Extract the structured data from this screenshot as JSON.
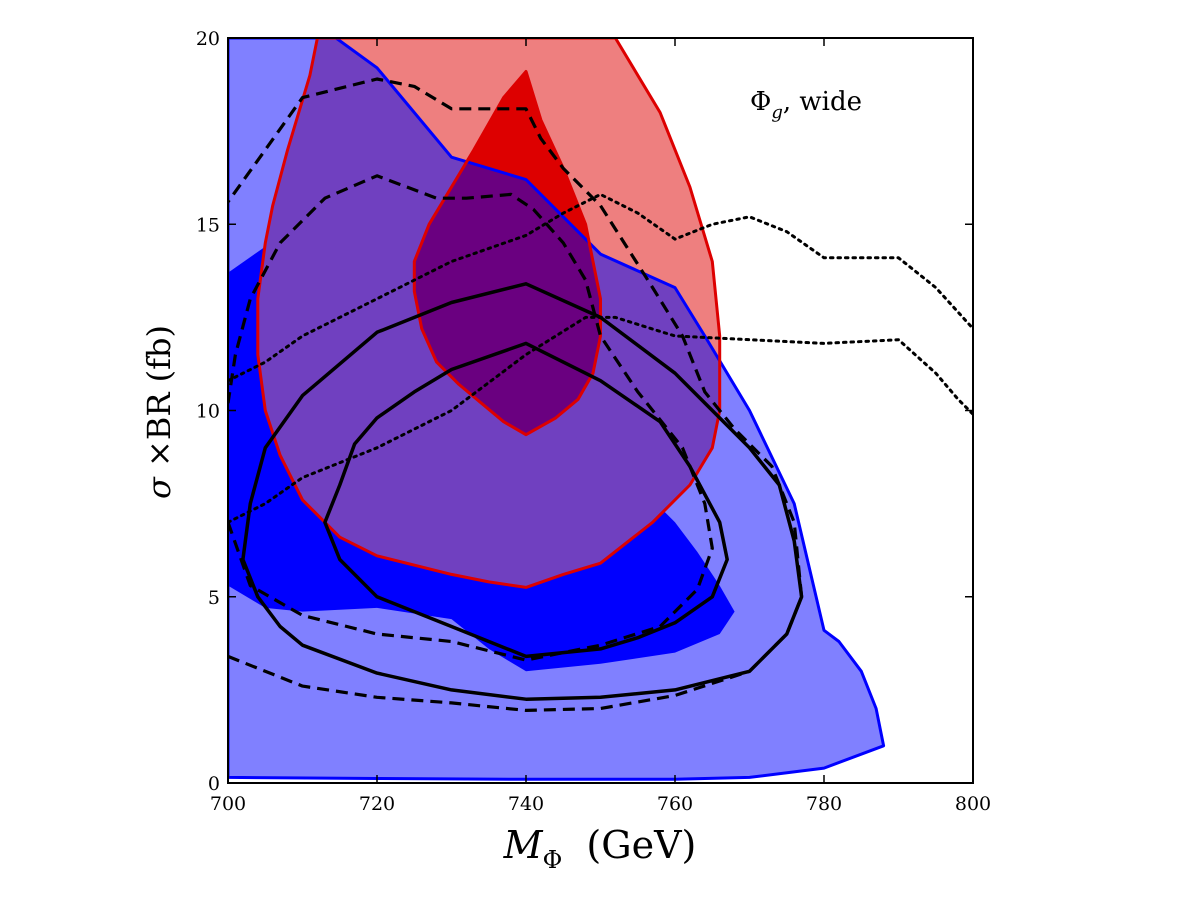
{
  "chart_data": {
    "type": "area",
    "annotation": {
      "symbol": "Φ",
      "subscript": "g",
      "suffix": ", wide"
    },
    "xlabel": {
      "base": "M",
      "subscript": "Φ",
      "suffix": "  (GeV)"
    },
    "ylabel": {
      "sigma": "σ",
      "rest": " ×BR (fb)"
    },
    "xlim": [
      700,
      800
    ],
    "ylim": [
      0,
      20
    ],
    "xticks": [
      700,
      720,
      740,
      760,
      780,
      800
    ],
    "yticks": [
      0,
      5,
      10,
      15,
      20
    ],
    "grid": false,
    "colors": {
      "blue_outer": "#8080ff",
      "blue_edge": "#0000ff",
      "blue_inner": "#0000ff",
      "red_outer": "#ee7f7f",
      "red_edge": "#dd0000",
      "red_inner": "#dd0000",
      "overlap_outer": "#7040c0",
      "overlap_inner": "#6a0080",
      "black": "#000000"
    },
    "regions": [
      {
        "id": "blue-outer",
        "fill": "blue_outer",
        "stroke": "blue_edge",
        "stroke_width": 3,
        "points": [
          [
            700,
            20
          ],
          [
            714.5,
            20
          ],
          [
            720,
            19.2
          ],
          [
            730,
            16.8
          ],
          [
            740,
            16.2
          ],
          [
            750,
            14.2
          ],
          [
            760,
            13.3
          ],
          [
            764,
            12.0
          ],
          [
            770,
            10.0
          ],
          [
            776,
            7.5
          ],
          [
            780,
            4.1
          ],
          [
            782,
            3.8
          ],
          [
            785,
            3.0
          ],
          [
            787,
            2.0
          ],
          [
            788,
            1.0
          ],
          [
            780,
            0.4
          ],
          [
            770,
            0.15
          ],
          [
            760,
            0.1
          ],
          [
            740,
            0.1
          ],
          [
            720,
            0.12
          ],
          [
            700,
            0.15
          ]
        ]
      },
      {
        "id": "blue-inner",
        "fill": "blue_inner",
        "stroke": "none",
        "stroke_width": 0,
        "points": [
          [
            700,
            13.7
          ],
          [
            705,
            14.4
          ],
          [
            710,
            14.9
          ],
          [
            715,
            14.3
          ],
          [
            720,
            13.5
          ],
          [
            725,
            12.7
          ],
          [
            730,
            11.9
          ],
          [
            735,
            11.1
          ],
          [
            740,
            10.3
          ],
          [
            745,
            9.6
          ],
          [
            750,
            8.7
          ],
          [
            755,
            8.0
          ],
          [
            760,
            7.0
          ],
          [
            763,
            6.2
          ],
          [
            766,
            5.3
          ],
          [
            768,
            4.6
          ],
          [
            766,
            4.0
          ],
          [
            760,
            3.5
          ],
          [
            750,
            3.2
          ],
          [
            740,
            3.0
          ],
          [
            735,
            3.6
          ],
          [
            730,
            4.4
          ],
          [
            720,
            4.7
          ],
          [
            710,
            4.6
          ],
          [
            705,
            4.7
          ],
          [
            700,
            5.3
          ]
        ]
      },
      {
        "id": "red-outer",
        "fill": "red_outer",
        "stroke": "red_edge",
        "stroke_width": 3,
        "points": [
          [
            712,
            20
          ],
          [
            726,
            20
          ],
          [
            729,
            20
          ],
          [
            736,
            20
          ],
          [
            745,
            20
          ],
          [
            752,
            20
          ],
          [
            758,
            18.0
          ],
          [
            762,
            16.0
          ],
          [
            765,
            14.0
          ],
          [
            766,
            12.0
          ],
          [
            766,
            10.0
          ],
          [
            765,
            9.0
          ],
          [
            762,
            8.0
          ],
          [
            757,
            7.0
          ],
          [
            750,
            5.9
          ],
          [
            745,
            5.6
          ],
          [
            740,
            5.25
          ],
          [
            735,
            5.4
          ],
          [
            730,
            5.6
          ],
          [
            720,
            6.1
          ],
          [
            715,
            6.6
          ],
          [
            710,
            7.6
          ],
          [
            707,
            8.8
          ],
          [
            705,
            10.0
          ],
          [
            704,
            11.5
          ],
          [
            704,
            13.0
          ],
          [
            705,
            14.5
          ],
          [
            706,
            15.5
          ],
          [
            708,
            17.0
          ],
          [
            711,
            19.0
          ]
        ]
      },
      {
        "id": "red-inner",
        "fill": "red_inner",
        "stroke": "red_edge",
        "stroke_width": 3,
        "points": [
          [
            725,
            14.0
          ],
          [
            727,
            15.0
          ],
          [
            730,
            16.0
          ],
          [
            733,
            17.0
          ],
          [
            737,
            18.4
          ],
          [
            740,
            19.1
          ],
          [
            742,
            17.8
          ],
          [
            745,
            16.5
          ],
          [
            748,
            15.0
          ],
          [
            749,
            14.0
          ],
          [
            750,
            13.0
          ],
          [
            750,
            12.0
          ],
          [
            749,
            11.0
          ],
          [
            747,
            10.3
          ],
          [
            744,
            9.8
          ],
          [
            740,
            9.35
          ],
          [
            737,
            9.7
          ],
          [
            734,
            10.2
          ],
          [
            731,
            10.7
          ],
          [
            728,
            11.3
          ],
          [
            726,
            12.2
          ],
          [
            725,
            13.2
          ]
        ]
      }
    ],
    "series": [
      {
        "id": "black-solid-outer",
        "style": "solid",
        "closed": true,
        "points": [
          [
            710,
            3.7
          ],
          [
            720,
            2.95
          ],
          [
            730,
            2.5
          ],
          [
            740,
            2.25
          ],
          [
            750,
            2.3
          ],
          [
            760,
            2.5
          ],
          [
            770,
            3.0
          ],
          [
            775,
            4.0
          ],
          [
            777,
            5.0
          ],
          [
            776,
            6.5
          ],
          [
            774,
            8.0
          ],
          [
            770,
            9.0
          ],
          [
            765,
            10.0
          ],
          [
            760,
            11.0
          ],
          [
            750,
            12.5
          ],
          [
            740,
            13.4
          ],
          [
            730,
            12.9
          ],
          [
            720,
            12.1
          ],
          [
            710,
            10.4
          ],
          [
            705,
            9.0
          ],
          [
            703,
            7.5
          ],
          [
            702,
            6.0
          ],
          [
            704,
            5.0
          ],
          [
            707,
            4.2
          ]
        ]
      },
      {
        "id": "black-solid-inner",
        "style": "solid",
        "closed": true,
        "points": [
          [
            740,
            3.4
          ],
          [
            750,
            3.6
          ],
          [
            755,
            3.9
          ],
          [
            760,
            4.3
          ],
          [
            765,
            5.0
          ],
          [
            767,
            6.0
          ],
          [
            766,
            7.0
          ],
          [
            762,
            8.5
          ],
          [
            758,
            9.7
          ],
          [
            750,
            10.8
          ],
          [
            740,
            11.8
          ],
          [
            730,
            11.1
          ],
          [
            725,
            10.5
          ],
          [
            720,
            9.8
          ],
          [
            717,
            9.1
          ],
          [
            715,
            8.0
          ],
          [
            713,
            7.0
          ],
          [
            715,
            6.0
          ],
          [
            720,
            5.0
          ],
          [
            730,
            4.2
          ]
        ]
      },
      {
        "id": "black-dashed-outer",
        "style": "dashed",
        "closed": false,
        "points": [
          [
            700,
            3.4
          ],
          [
            710,
            2.6
          ],
          [
            720,
            2.3
          ],
          [
            730,
            2.15
          ],
          [
            740,
            1.95
          ],
          [
            750,
            2.0
          ],
          [
            760,
            2.35
          ],
          [
            770,
            3.0
          ],
          [
            775,
            4.0
          ],
          [
            777,
            5.0
          ],
          [
            776,
            7.0
          ],
          [
            773,
            8.5
          ],
          [
            768,
            9.5
          ],
          [
            764,
            10.5
          ],
          [
            761,
            12.0
          ],
          [
            757,
            13.3
          ],
          [
            750,
            15.5
          ],
          [
            745,
            16.5
          ],
          [
            742,
            17.3
          ],
          [
            740,
            18.1
          ],
          [
            735,
            18.1
          ],
          [
            730,
            18.1
          ],
          [
            725,
            18.7
          ],
          [
            720,
            18.9
          ],
          [
            710,
            18.4
          ],
          [
            705,
            17.0
          ],
          [
            700,
            15.6
          ]
        ]
      },
      {
        "id": "black-dashed-inner",
        "style": "dashed",
        "closed": false,
        "points": [
          [
            700,
            7.0
          ],
          [
            703,
            5.3
          ],
          [
            710,
            4.5
          ],
          [
            720,
            4.0
          ],
          [
            730,
            3.8
          ],
          [
            740,
            3.3
          ],
          [
            750,
            3.7
          ],
          [
            758,
            4.2
          ],
          [
            763,
            5.2
          ],
          [
            765,
            6.3
          ],
          [
            764,
            7.5
          ],
          [
            761,
            9.0
          ],
          [
            755,
            10.5
          ],
          [
            750,
            12.0
          ],
          [
            748,
            13.5
          ],
          [
            745,
            14.5
          ],
          [
            741,
            15.4
          ],
          [
            738,
            15.8
          ],
          [
            732,
            15.7
          ],
          [
            728,
            15.7
          ],
          [
            720,
            16.3
          ],
          [
            713,
            15.7
          ],
          [
            707,
            14.5
          ],
          [
            703,
            13.0
          ],
          [
            701,
            11.5
          ],
          [
            700,
            10.2
          ]
        ]
      },
      {
        "id": "black-dotted-upper",
        "style": "dotted",
        "closed": false,
        "points": [
          [
            700,
            10.8
          ],
          [
            705,
            11.3
          ],
          [
            710,
            12.0
          ],
          [
            720,
            13.0
          ],
          [
            730,
            14.0
          ],
          [
            740,
            14.7
          ],
          [
            745,
            15.3
          ],
          [
            750,
            15.8
          ],
          [
            755,
            15.3
          ],
          [
            760,
            14.6
          ],
          [
            765,
            15.0
          ],
          [
            770,
            15.2
          ],
          [
            775,
            14.8
          ],
          [
            780,
            14.1
          ],
          [
            790,
            14.1
          ],
          [
            795,
            13.3
          ],
          [
            800,
            12.2
          ]
        ]
      },
      {
        "id": "black-dotted-lower",
        "style": "dotted",
        "closed": false,
        "points": [
          [
            700,
            7.0
          ],
          [
            705,
            7.5
          ],
          [
            710,
            8.2
          ],
          [
            720,
            9.0
          ],
          [
            730,
            10.0
          ],
          [
            740,
            11.5
          ],
          [
            748,
            12.5
          ],
          [
            752,
            12.5
          ],
          [
            760,
            12.0
          ],
          [
            770,
            11.9
          ],
          [
            780,
            11.8
          ],
          [
            790,
            11.9
          ],
          [
            795,
            11.0
          ],
          [
            798,
            10.3
          ],
          [
            800,
            9.9
          ]
        ]
      }
    ]
  }
}
